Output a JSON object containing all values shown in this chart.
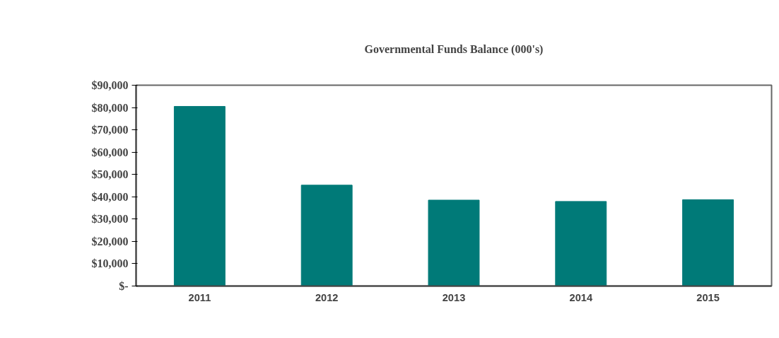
{
  "chart_data": {
    "type": "bar",
    "title": "Governmental Funds Balance (000's)",
    "categories": [
      "2011",
      "2012",
      "2013",
      "2014",
      "2015"
    ],
    "values": [
      80500,
      45200,
      38500,
      37900,
      38700
    ],
    "color": "#007a78",
    "ylim": [
      0,
      90000
    ],
    "yticks": [
      {
        "value": 0,
        "label": "$-"
      },
      {
        "value": 10000,
        "label": "$10,000"
      },
      {
        "value": 20000,
        "label": "$20,000"
      },
      {
        "value": 30000,
        "label": "$30,000"
      },
      {
        "value": 40000,
        "label": "$40,000"
      },
      {
        "value": 50000,
        "label": "$50,000"
      },
      {
        "value": 60000,
        "label": "$60,000"
      },
      {
        "value": 70000,
        "label": "$70,000"
      },
      {
        "value": 80000,
        "label": "$80,000"
      },
      {
        "value": 90000,
        "label": "$90,000"
      }
    ],
    "grid": false
  }
}
